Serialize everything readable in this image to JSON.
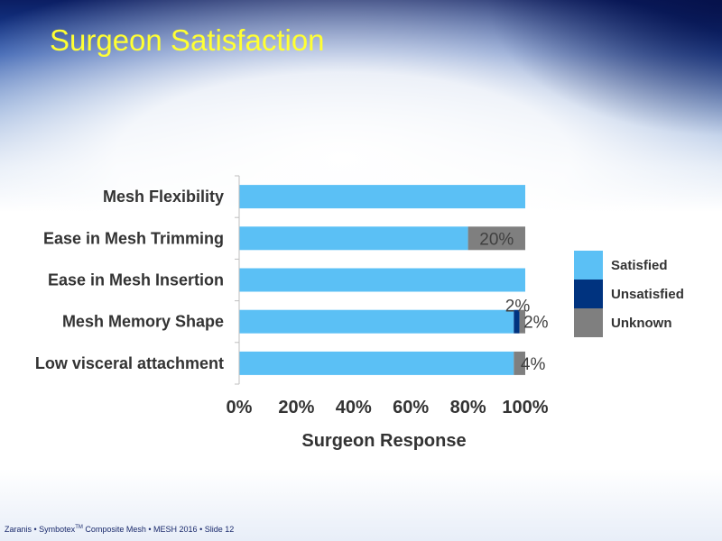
{
  "slide": {
    "title": "Surgeon Satisfaction",
    "footer_pre": "Zaranis • Symbotex",
    "footer_tm": "TM",
    "footer_post": " Composite Mesh • MESH 2016 • Slide 12"
  },
  "chart_data": {
    "type": "bar",
    "orientation": "horizontal",
    "stacked": true,
    "title": "",
    "xlabel": "Surgeon Response",
    "ylabel": "",
    "xlim": [
      0,
      100
    ],
    "x_ticks": [
      "0%",
      "20%",
      "40%",
      "60%",
      "80%",
      "100%"
    ],
    "categories": [
      "Mesh Flexibility",
      "Ease in Mesh Trimming",
      "Ease in Mesh Insertion",
      "Mesh Memory Shape",
      "Low visceral attachment"
    ],
    "series": [
      {
        "name": "Satisfied",
        "color": "#5bc0f5",
        "values": [
          100,
          80,
          100,
          96,
          96
        ]
      },
      {
        "name": "Unsatisfied",
        "color": "#00337f",
        "values": [
          0,
          0,
          0,
          2,
          0
        ]
      },
      {
        "name": "Unknown",
        "color": "#7f7f7f",
        "values": [
          0,
          20,
          0,
          2,
          4
        ]
      }
    ],
    "data_labels": [
      {
        "category": "Ease in Mesh Trimming",
        "series": "Unknown",
        "text": "20%"
      },
      {
        "category": "Mesh Memory Shape",
        "series": "Unsatisfied",
        "text": "2%"
      },
      {
        "category": "Mesh Memory Shape",
        "series": "Unknown",
        "text": "2%"
      },
      {
        "category": "Low visceral attachment",
        "series": "Unknown",
        "text": "4%"
      }
    ],
    "legend_position": "right",
    "grid": false
  }
}
